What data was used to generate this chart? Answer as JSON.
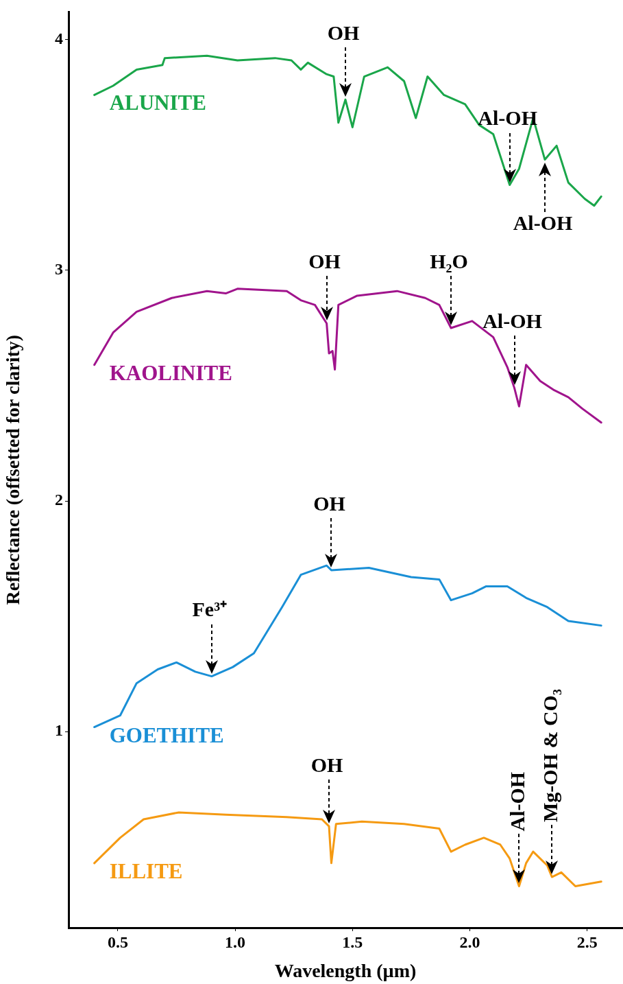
{
  "chart_data": {
    "type": "line",
    "xlabel": "Wavelength (µm)",
    "ylabel": "Reflectance (offsetted for clarity)",
    "xlim": [
      0.29,
      2.65
    ],
    "xticks": [
      0.5,
      {
        "value": 1,
        "label": "1.0"
      },
      1.5,
      {
        "value": 2,
        "label": "2.0"
      },
      2.5
    ],
    "ylim": [
      0.15,
      4.12
    ],
    "yticks": [
      1,
      2,
      3,
      4
    ],
    "grid": false,
    "legend": false,
    "marker": "none",
    "line_style": "solid",
    "series": [
      {
        "name": "ALUNITE",
        "color": "#1aa64a",
        "x": [
          0.4,
          0.48,
          0.58,
          0.69,
          0.7,
          0.88,
          1.01,
          1.17,
          1.24,
          1.28,
          1.31,
          1.39,
          1.42,
          1.44,
          1.47,
          1.5,
          1.55,
          1.65,
          1.72,
          1.77,
          1.82,
          1.89,
          1.98,
          2.04,
          2.1,
          2.17,
          2.21,
          2.27,
          2.32,
          2.37,
          2.42,
          2.49,
          2.53,
          2.56
        ],
        "values": [
          3.76,
          3.8,
          3.87,
          3.89,
          3.92,
          3.93,
          3.91,
          3.92,
          3.91,
          3.87,
          3.9,
          3.85,
          3.84,
          3.64,
          3.74,
          3.62,
          3.84,
          3.88,
          3.82,
          3.66,
          3.84,
          3.76,
          3.72,
          3.63,
          3.59,
          3.37,
          3.44,
          3.66,
          3.48,
          3.54,
          3.38,
          3.31,
          3.28,
          3.32
        ]
      },
      {
        "name": "KAOLINITE",
        "color": "#a0148c",
        "x": [
          0.4,
          0.48,
          0.58,
          0.73,
          0.88,
          0.96,
          1.01,
          1.22,
          1.28,
          1.34,
          1.39,
          1.4,
          1.415,
          1.425,
          1.44,
          1.52,
          1.69,
          1.81,
          1.87,
          1.92,
          2.01,
          2.1,
          2.16,
          2.19,
          2.21,
          2.24,
          2.3,
          2.36,
          2.42,
          2.48,
          2.56
        ],
        "values": [
          2.59,
          2.73,
          2.82,
          2.88,
          2.91,
          2.9,
          2.92,
          2.91,
          2.87,
          2.85,
          2.77,
          2.64,
          2.65,
          2.57,
          2.85,
          2.89,
          2.91,
          2.88,
          2.85,
          2.75,
          2.78,
          2.71,
          2.58,
          2.49,
          2.41,
          2.59,
          2.52,
          2.48,
          2.45,
          2.4,
          2.34
        ]
      },
      {
        "name": "GOETHITE",
        "color": "#1a8fd6",
        "x": [
          0.4,
          0.51,
          0.58,
          0.67,
          0.75,
          0.83,
          0.9,
          0.99,
          1.08,
          1.2,
          1.28,
          1.39,
          1.41,
          1.57,
          1.75,
          1.87,
          1.92,
          2.01,
          2.07,
          2.16,
          2.24,
          2.33,
          2.42,
          2.56
        ],
        "values": [
          1.02,
          1.07,
          1.21,
          1.27,
          1.3,
          1.26,
          1.24,
          1.28,
          1.34,
          1.54,
          1.68,
          1.72,
          1.7,
          1.71,
          1.67,
          1.66,
          1.57,
          1.6,
          1.63,
          1.63,
          1.58,
          1.54,
          1.48,
          1.46
        ]
      },
      {
        "name": "ILLITE",
        "color": "#f59a12",
        "x": [
          0.4,
          0.51,
          0.61,
          0.76,
          0.96,
          1.22,
          1.37,
          1.4,
          1.41,
          1.43,
          1.54,
          1.72,
          1.87,
          1.92,
          1.98,
          2.06,
          2.13,
          2.17,
          2.21,
          2.24,
          2.27,
          2.33,
          2.35,
          2.39,
          2.45,
          2.56
        ],
        "values": [
          0.43,
          0.54,
          0.62,
          0.65,
          0.64,
          0.63,
          0.62,
          0.59,
          0.43,
          0.6,
          0.61,
          0.6,
          0.58,
          0.48,
          0.51,
          0.54,
          0.51,
          0.45,
          0.33,
          0.43,
          0.48,
          0.42,
          0.37,
          0.39,
          0.33,
          0.35
        ]
      }
    ],
    "annotations": [
      {
        "text": "OH",
        "x": 1.47,
        "y": 3.74
      },
      {
        "text": "Al-OH",
        "x": 2.17,
        "y": 3.37
      },
      {
        "text": "Al-OH",
        "x": 2.32,
        "y": 3.48
      },
      {
        "text": "OH",
        "x": 1.39,
        "y": 2.77
      },
      {
        "text": "H₂O",
        "x": 1.92,
        "y": 2.75
      },
      {
        "text": "Al-OH",
        "x": 2.19,
        "y": 2.49
      },
      {
        "text": "OH",
        "x": 1.41,
        "y": 1.7
      },
      {
        "text": "Fe³⁺",
        "x": 0.9,
        "y": 1.24
      },
      {
        "text": "OH",
        "x": 1.4,
        "y": 0.59
      },
      {
        "text": "Al-OH",
        "x": 2.21,
        "y": 0.33
      },
      {
        "text": "Mg-OH & CO₃",
        "x": 2.35,
        "y": 0.37
      }
    ]
  }
}
